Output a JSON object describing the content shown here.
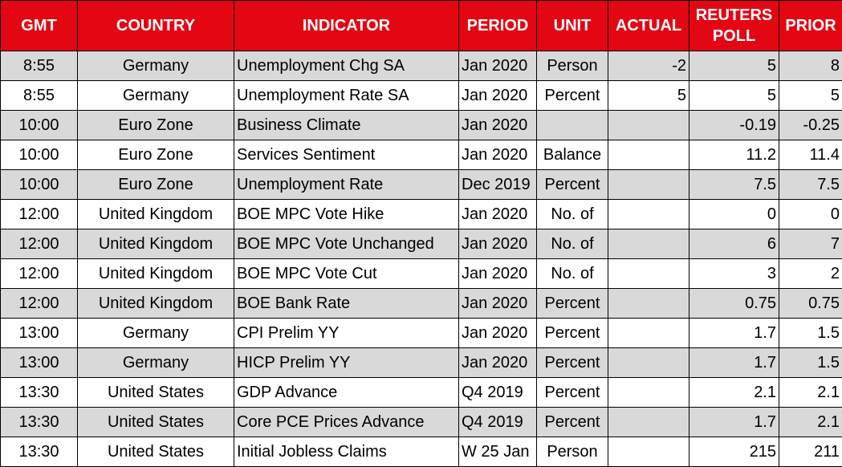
{
  "table": {
    "header": [
      "GMT",
      "COUNTRY",
      "INDICATOR",
      "PERIOD",
      "UNIT",
      "ACTUAL",
      "REUTERS POLL",
      "PRIOR"
    ],
    "rows": [
      [
        "8:55",
        "Germany",
        "Unemployment Chg SA",
        "Jan 2020",
        "Person",
        "-2",
        "5",
        "8"
      ],
      [
        "8:55",
        "Germany",
        "Unemployment Rate SA",
        "Jan 2020",
        "Percent",
        "5",
        "5",
        "5"
      ],
      [
        "10:00",
        "Euro Zone",
        "Business Climate",
        "Jan 2020",
        null,
        null,
        "-0.19",
        "-0.25"
      ],
      [
        "10:00",
        "Euro Zone",
        "Services Sentiment",
        "Jan 2020",
        "Balance",
        null,
        "11.2",
        "11.4"
      ],
      [
        "10:00",
        "Euro Zone",
        "Unemployment Rate",
        "Dec 2019",
        "Percent",
        null,
        "7.5",
        "7.5"
      ],
      [
        "12:00",
        "United Kingdom",
        "BOE MPC Vote Hike",
        "Jan 2020",
        "No. of",
        null,
        "0",
        "0"
      ],
      [
        "12:00",
        "United Kingdom",
        "BOE MPC Vote Unchanged",
        "Jan 2020",
        "No. of",
        null,
        "6",
        "7"
      ],
      [
        "12:00",
        "United Kingdom",
        "BOE MPC Vote Cut",
        "Jan 2020",
        "No. of",
        null,
        "3",
        "2"
      ],
      [
        "12:00",
        "United Kingdom",
        "BOE Bank Rate",
        "Jan 2020",
        "Percent",
        null,
        "0.75",
        "0.75"
      ],
      [
        "13:00",
        "Germany",
        "CPI Prelim YY",
        "Jan 2020",
        "Percent",
        null,
        "1.7",
        "1.5"
      ],
      [
        "13:00",
        "Germany",
        "HICP Prelim YY",
        "Jan 2020",
        "Percent",
        null,
        "1.7",
        "1.5"
      ],
      [
        "13:30",
        "United States",
        "GDP Advance",
        "Q4 2019",
        "Percent",
        null,
        "2.1",
        "2.1"
      ],
      [
        "13:30",
        "United States",
        "Core PCE Prices Advance",
        "Q4 2019",
        "Percent",
        null,
        "1.7",
        "2.1"
      ],
      [
        "13:30",
        "United States",
        "Initial Jobless Claims",
        "W 25 Jan",
        "Person",
        null,
        "215",
        "211"
      ]
    ]
  }
}
